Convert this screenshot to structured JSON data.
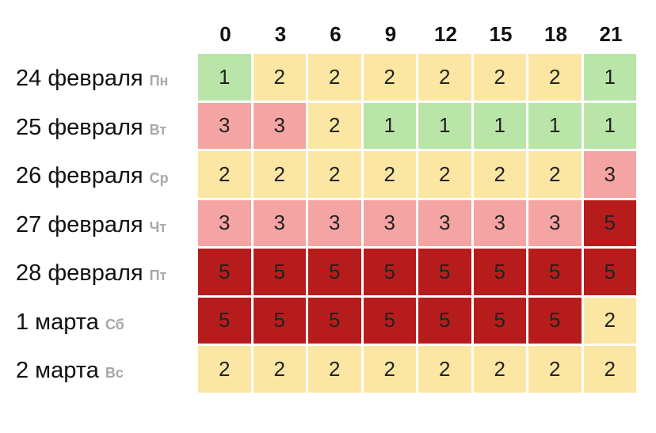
{
  "chart_data": {
    "type": "heatmap",
    "columns": [
      "0",
      "3",
      "6",
      "9",
      "12",
      "15",
      "18",
      "21"
    ],
    "rows": [
      {
        "date": "24 февраля",
        "weekday": "Пн",
        "values": [
          1,
          2,
          2,
          2,
          2,
          2,
          2,
          1
        ]
      },
      {
        "date": "25 февраля",
        "weekday": "Вт",
        "values": [
          3,
          3,
          2,
          1,
          1,
          1,
          1,
          1
        ]
      },
      {
        "date": "26 февраля",
        "weekday": "Ср",
        "values": [
          2,
          2,
          2,
          2,
          2,
          2,
          2,
          3
        ]
      },
      {
        "date": "27 февраля",
        "weekday": "Чт",
        "values": [
          3,
          3,
          3,
          3,
          3,
          3,
          3,
          5
        ]
      },
      {
        "date": "28 февраля",
        "weekday": "Пт",
        "values": [
          5,
          5,
          5,
          5,
          5,
          5,
          5,
          5
        ]
      },
      {
        "date": "1 марта",
        "weekday": "Сб",
        "values": [
          5,
          5,
          5,
          5,
          5,
          5,
          5,
          2
        ]
      },
      {
        "date": "2 марта",
        "weekday": "Вс",
        "values": [
          2,
          2,
          2,
          2,
          2,
          2,
          2,
          2
        ]
      }
    ],
    "colors": {
      "1": "#b9e6a8",
      "2": "#fbe7a3",
      "3": "#f5a4a4",
      "5": "#b71c1c"
    }
  }
}
